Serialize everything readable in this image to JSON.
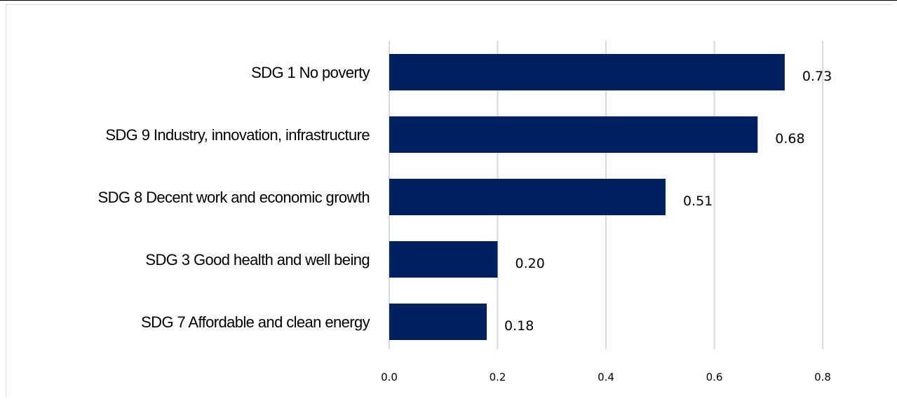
{
  "chart_data": {
    "type": "bar",
    "orientation": "horizontal",
    "categories": [
      "SDG 1 No poverty",
      "SDG 9 Industry, innovation, infrastructure",
      "SDG 8 Decent work and economic growth",
      "SDG 3 Good health and well being",
      "SDG 7 Affordable and clean energy"
    ],
    "values": [
      0.73,
      0.68,
      0.51,
      0.2,
      0.18
    ],
    "value_labels": [
      "0.73",
      "0.68",
      "0.51",
      "0.20",
      "0.18"
    ],
    "title": "",
    "xlabel": "",
    "ylabel": "",
    "xlim": [
      0,
      0.8
    ],
    "x_ticks": [
      "0.0",
      "0.2",
      "0.4",
      "0.6",
      "0.8"
    ],
    "grid": "vertical",
    "bar_color": "#002060",
    "grid_color": "#d9d9d9"
  }
}
